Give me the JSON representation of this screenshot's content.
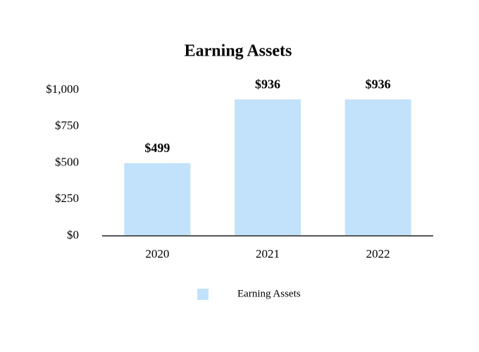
{
  "chart_data": {
    "type": "bar",
    "title": "Earning Assets",
    "categories": [
      "2020",
      "2021",
      "2022"
    ],
    "series": [
      {
        "name": "Earning Assets",
        "color": "#c2e2fb",
        "values": [
          499,
          936,
          936
        ],
        "value_labels": [
          "$499",
          "$936",
          "$936"
        ]
      }
    ],
    "ylim": [
      0,
      1000
    ],
    "yticks": [
      {
        "value": 0,
        "label": "$0"
      },
      {
        "value": 250,
        "label": "$250"
      },
      {
        "value": 500,
        "label": "$500"
      },
      {
        "value": 750,
        "label": "$750"
      },
      {
        "value": 1000,
        "label": "$1,000"
      }
    ],
    "grid": false,
    "legend": "bottom"
  }
}
